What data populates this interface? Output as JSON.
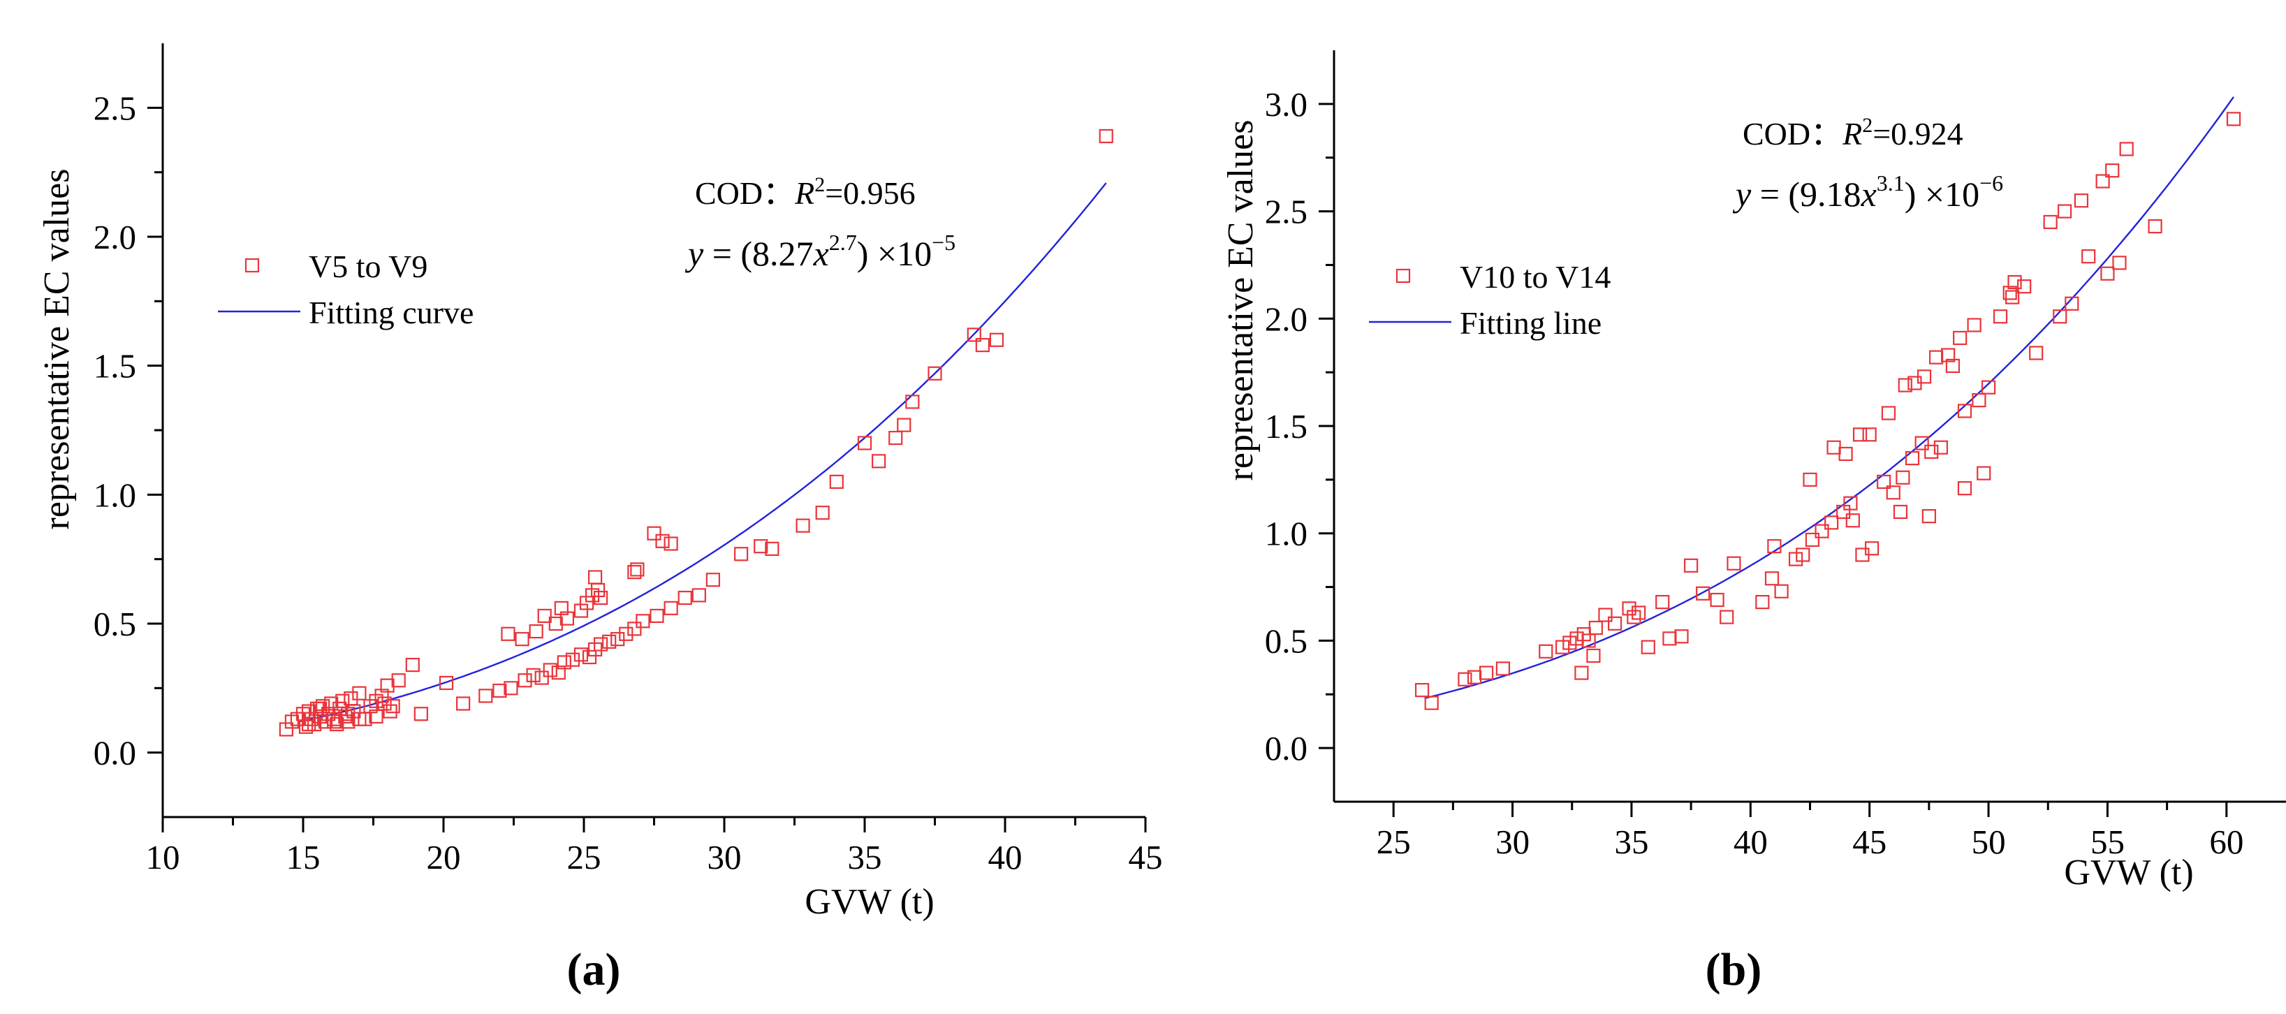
{
  "chart_data": [
    {
      "type": "scatter",
      "panel_label": "(a)",
      "xlabel": "GVW (t)",
      "ylabel": "representative EC values",
      "xlim": [
        10,
        45
      ],
      "ylim": [
        -0.25,
        2.75
      ],
      "xticks": [
        10,
        15,
        20,
        25,
        30,
        35,
        40,
        45
      ],
      "yticks": [
        0.0,
        0.5,
        1.0,
        1.5,
        2.0,
        2.5
      ],
      "xtick_labels": [
        "10",
        "15",
        "20",
        "25",
        "30",
        "35",
        "40",
        "45"
      ],
      "ytick_labels": [
        "0.0",
        "0.5",
        "1.0",
        "1.5",
        "2.0",
        "2.5"
      ],
      "grid": false,
      "legend_position": "left",
      "annotation": {
        "cod_prefix": "COD：",
        "r_symbol": "R",
        "r_exp": "2",
        "r_value": "=0.956",
        "eq_y": "y",
        "eq_open": " = (8.27",
        "eq_x": "x",
        "eq_x_exp": "2.7",
        "eq_close": ") ×10",
        "eq_tail_exp": "−5"
      },
      "fit": {
        "name": "Fitting curve",
        "coef": 8.27e-05,
        "exponent": 2.7,
        "x_range": [
          14.8,
          43.6
        ],
        "color": "#2222dd"
      },
      "series": [
        {
          "name": "V5 to V9",
          "color": "#e8353a",
          "x": [
            14.4,
            14.6,
            14.8,
            15.0,
            15.1,
            15.2,
            15.3,
            15.4,
            15.5,
            15.6,
            15.7,
            15.8,
            15.9,
            16.0,
            16.1,
            16.2,
            16.3,
            16.4,
            16.5,
            16.6,
            16.7,
            16.8,
            17.0,
            17.2,
            17.4,
            17.6,
            17.8,
            18.0,
            18.2,
            18.4,
            18.9,
            19.2,
            20.1,
            20.7,
            21.5,
            22.0,
            22.4,
            22.9,
            23.2,
            23.5,
            23.8,
            24.1,
            24.3,
            24.6,
            24.9,
            25.2,
            25.4,
            25.6,
            25.9,
            26.2,
            26.5,
            26.8,
            27.1,
            27.6,
            28.1,
            28.6,
            29.1,
            29.6,
            30.6,
            31.3,
            31.7,
            32.8,
            33.5,
            34.0,
            35.0,
            35.5,
            36.1,
            36.4,
            36.7,
            37.5,
            38.9,
            39.2,
            39.7,
            43.6,
            22.3,
            22.8,
            23.3,
            23.6,
            24.0,
            24.2,
            24.4,
            24.9,
            25.1,
            25.3,
            25.4,
            25.5,
            25.6,
            26.8,
            26.9,
            27.5,
            27.8,
            28.1,
            15.2,
            15.6,
            16.1,
            16.6,
            17.0,
            17.6,
            17.9,
            18.1
          ],
          "y": [
            0.09,
            0.12,
            0.13,
            0.15,
            0.1,
            0.16,
            0.13,
            0.11,
            0.17,
            0.14,
            0.18,
            0.12,
            0.15,
            0.19,
            0.13,
            0.11,
            0.17,
            0.2,
            0.14,
            0.12,
            0.21,
            0.16,
            0.23,
            0.13,
            0.18,
            0.2,
            0.22,
            0.26,
            0.18,
            0.28,
            0.34,
            0.15,
            0.27,
            0.19,
            0.22,
            0.24,
            0.25,
            0.28,
            0.3,
            0.29,
            0.32,
            0.31,
            0.35,
            0.36,
            0.38,
            0.37,
            0.4,
            0.42,
            0.43,
            0.44,
            0.46,
            0.48,
            0.51,
            0.53,
            0.56,
            0.6,
            0.61,
            0.67,
            0.77,
            0.8,
            0.79,
            0.88,
            0.93,
            1.05,
            1.2,
            1.13,
            1.22,
            1.27,
            1.36,
            1.47,
            1.62,
            1.58,
            1.6,
            2.39,
            0.46,
            0.44,
            0.47,
            0.53,
            0.5,
            0.56,
            0.52,
            0.55,
            0.58,
            0.61,
            0.68,
            0.63,
            0.6,
            0.7,
            0.71,
            0.85,
            0.82,
            0.81,
            0.11,
            0.17,
            0.12,
            0.15,
            0.13,
            0.14,
            0.19,
            0.16
          ]
        }
      ]
    },
    {
      "type": "scatter",
      "panel_label": "(b)",
      "xlabel": "GVW (t)",
      "ylabel": "representative EC values",
      "xlim": [
        22.5,
        62.5
      ],
      "ylim": [
        -0.25,
        3.25
      ],
      "xticks": [
        25,
        30,
        35,
        40,
        45,
        50,
        55,
        60
      ],
      "yticks": [
        0.0,
        0.5,
        1.0,
        1.5,
        2.0,
        2.5,
        3.0
      ],
      "xtick_labels": [
        "25",
        "30",
        "35",
        "40",
        "45",
        "50",
        "55",
        "60"
      ],
      "ytick_labels": [
        "0.0",
        "0.5",
        "1.0",
        "1.5",
        "2.0",
        "2.5",
        "3.0"
      ],
      "grid": false,
      "legend_position": "left",
      "annotation": {
        "cod_prefix": "COD：",
        "r_symbol": "R",
        "r_exp": "2",
        "r_value": "=0.924",
        "eq_y": "y",
        "eq_open": " = (9.18",
        "eq_x": "x",
        "eq_x_exp": "3.1",
        "eq_close": ") ×10",
        "eq_tail_exp": "−6"
      },
      "fit": {
        "name": "Fitting line",
        "coef": 9.18e-06,
        "exponent": 3.1,
        "x_range": [
          26.3,
          60.3
        ],
        "color": "#2222dd"
      },
      "series": [
        {
          "name": "V10 to V14",
          "color": "#e8353a",
          "x": [
            26.2,
            26.6,
            28.0,
            28.4,
            28.9,
            29.6,
            31.4,
            32.1,
            32.4,
            32.7,
            33.0,
            33.2,
            33.5,
            33.9,
            34.3,
            34.9,
            35.3,
            35.7,
            36.3,
            36.6,
            37.1,
            37.5,
            38.0,
            38.6,
            39.0,
            39.3,
            40.5,
            40.9,
            41.3,
            41.9,
            42.2,
            42.6,
            43.0,
            43.4,
            43.9,
            44.3,
            44.7,
            45.1,
            45.6,
            46.0,
            46.4,
            46.8,
            47.2,
            47.6,
            48.0,
            48.5,
            49.0,
            49.6,
            50.0,
            51.0,
            51.5,
            52.0,
            53.0,
            53.5,
            54.2,
            55.0,
            55.5,
            57.0,
            60.3,
            41.0,
            42.5,
            43.5,
            44.0,
            44.2,
            44.6,
            45.0,
            45.8,
            46.5,
            46.9,
            47.3,
            47.8,
            48.3,
            48.8,
            49.4,
            50.5,
            50.9,
            51.1,
            52.6,
            53.2,
            53.9,
            54.8,
            55.2,
            55.8,
            49.0,
            49.8,
            47.5,
            46.3,
            35.1,
            33.4,
            32.9
          ],
          "y": [
            0.27,
            0.21,
            0.32,
            0.33,
            0.35,
            0.37,
            0.45,
            0.47,
            0.49,
            0.51,
            0.53,
            0.5,
            0.56,
            0.62,
            0.58,
            0.65,
            0.63,
            0.47,
            0.68,
            0.51,
            0.52,
            0.85,
            0.72,
            0.69,
            0.61,
            0.86,
            0.68,
            0.79,
            0.73,
            0.88,
            0.9,
            0.97,
            1.01,
            1.05,
            1.1,
            1.06,
            0.9,
            0.93,
            1.24,
            1.19,
            1.26,
            1.35,
            1.42,
            1.38,
            1.4,
            1.78,
            1.57,
            1.62,
            1.68,
            2.1,
            2.15,
            1.84,
            2.01,
            2.07,
            2.29,
            2.21,
            2.26,
            2.43,
            2.93,
            0.94,
            1.25,
            1.4,
            1.37,
            1.14,
            1.46,
            1.46,
            1.56,
            1.69,
            1.7,
            1.73,
            1.82,
            1.83,
            1.91,
            1.97,
            2.01,
            2.12,
            2.17,
            2.45,
            2.5,
            2.55,
            2.64,
            2.69,
            2.79,
            1.21,
            1.28,
            1.08,
            1.1,
            0.61,
            0.43,
            0.35
          ]
        }
      ]
    }
  ]
}
